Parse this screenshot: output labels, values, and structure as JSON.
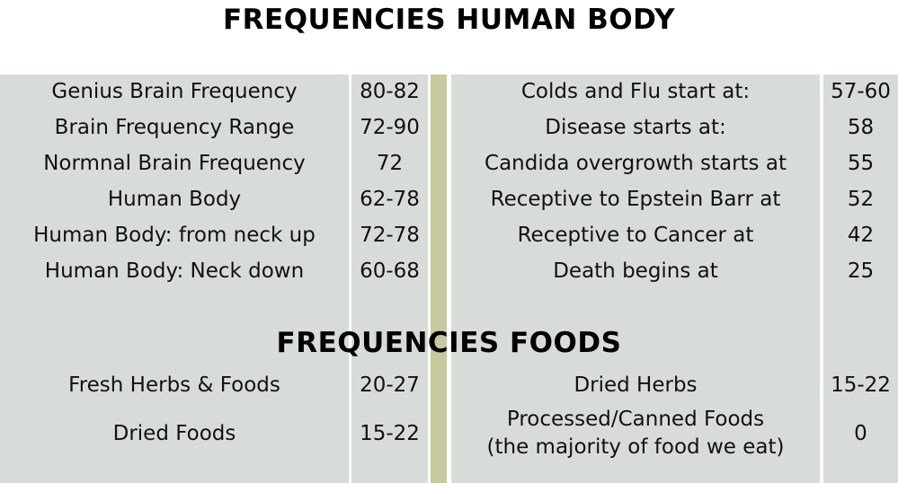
{
  "title_body": "FREQUENCIES HUMAN BODY",
  "title_foods": "FREQUENCIES FOODS",
  "body_rows": [
    {
      "label": "Genius Brain Frequency",
      "value": "80-82",
      "condition": "Colds and Flu start at:",
      "freq": "57-60"
    },
    {
      "label": "Brain Frequency Range",
      "value": "72-90",
      "condition": "Disease starts at:",
      "freq": "58"
    },
    {
      "label": "Normnal Brain Frequency",
      "value": "72",
      "condition": "Candida overgrowth starts at",
      "freq": "55"
    },
    {
      "label": "Human Body",
      "value": "62-78",
      "condition": "Receptive to Epstein Barr at",
      "freq": "52"
    },
    {
      "label": "Human Body: from neck up",
      "value": "72-78",
      "condition": "Receptive to Cancer at",
      "freq": "42"
    },
    {
      "label": "Human Body: Neck down",
      "value": "60-68",
      "condition": "Death begins at",
      "freq": "25"
    }
  ],
  "food_rows": [
    {
      "label": "Fresh Herbs & Foods",
      "value": "20-27",
      "condition": "Dried Herbs",
      "freq": "15-22"
    },
    {
      "label": "Dried Foods",
      "value": "15-22",
      "condition_line1": "Processed/Canned Foods",
      "condition_line2": "(the majority of food we eat)",
      "freq": "0"
    }
  ]
}
